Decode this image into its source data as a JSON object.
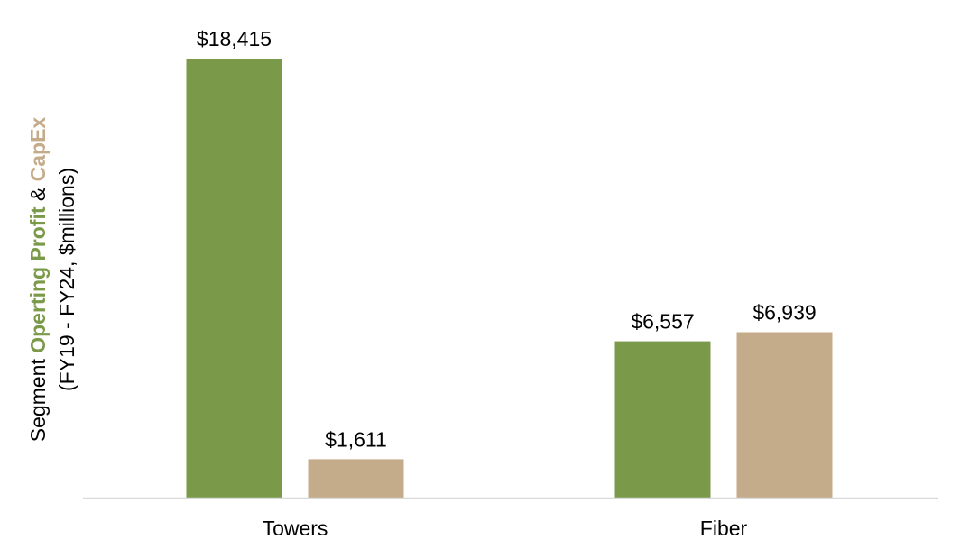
{
  "chart_data": {
    "type": "bar",
    "categories": [
      "Towers",
      "Fiber"
    ],
    "series": [
      {
        "values": [
          18415,
          6557
        ],
        "labels": [
          "$18,415",
          "$6,557"
        ],
        "color": "#7a9a4a"
      },
      {
        "values": [
          1611,
          6939
        ],
        "labels": [
          "$1,611",
          "$6,939"
        ],
        "color": "#c4ab89"
      }
    ],
    "ylabel": {
      "line1": [
        {
          "text": "Segment ",
          "color": "#000000",
          "bold": false
        },
        {
          "text": "Operting Profit",
          "color": "#7a9a4a",
          "bold": true
        },
        {
          "text": " & ",
          "color": "#000000",
          "bold": false
        },
        {
          "text": "CapEx",
          "color": "#c4ab89",
          "bold": true
        }
      ],
      "line2": "(FY19 - FY24, $millions)"
    },
    "ylim": [
      0,
      18415
    ],
    "grid": false,
    "legend": "none"
  },
  "colors": {
    "axis_line": "#d9d9d9"
  }
}
